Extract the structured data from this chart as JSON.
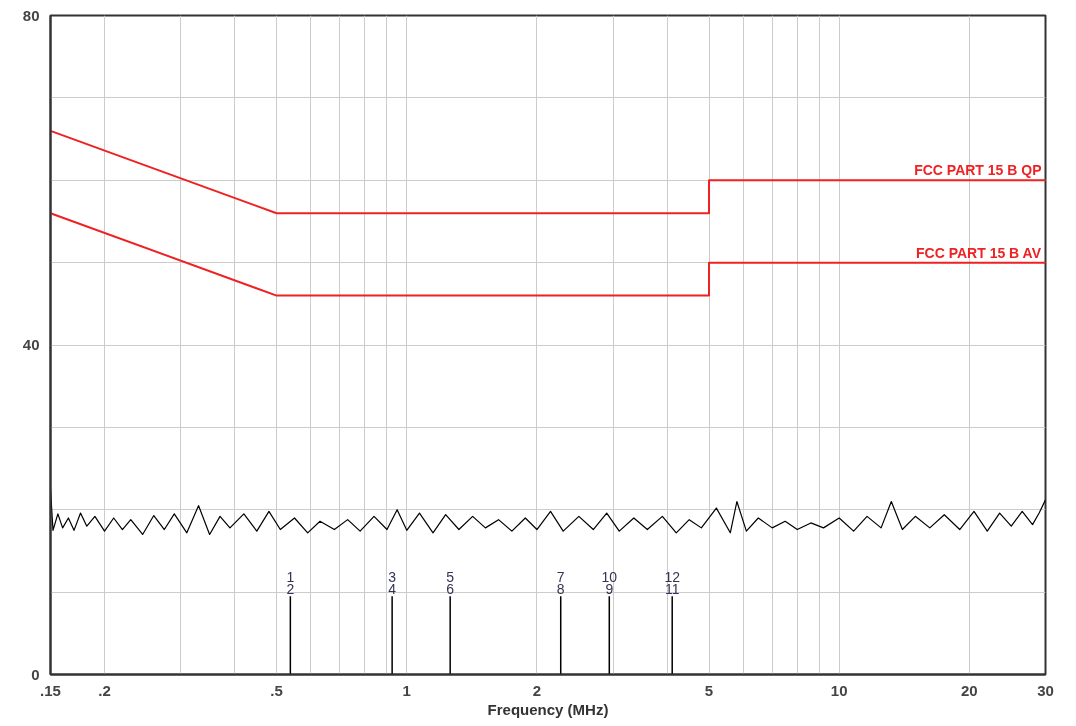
{
  "chart_data": {
    "type": "line",
    "xlabel": "Frequency (MHz)",
    "log": "x",
    "xlim": [
      0.15,
      30
    ],
    "ylim": [
      0,
      80
    ],
    "xticks": [
      {
        "value": 0.15,
        "label": ".15"
      },
      {
        "value": 0.2,
        "label": ".2"
      },
      {
        "value": 0.3,
        "label": null
      },
      {
        "value": 0.4,
        "label": null
      },
      {
        "value": 0.5,
        "label": ".5"
      },
      {
        "value": 0.6,
        "label": null
      },
      {
        "value": 0.7,
        "label": null
      },
      {
        "value": 0.8,
        "label": null
      },
      {
        "value": 0.9,
        "label": null
      },
      1,
      2,
      {
        "value": 3,
        "label": null
      },
      {
        "value": 4,
        "label": null
      },
      5,
      {
        "value": 6,
        "label": null
      },
      {
        "value": 7,
        "label": null
      },
      {
        "value": 8,
        "label": null
      },
      {
        "value": 9,
        "label": null
      },
      10,
      20,
      30
    ],
    "yticks": [
      0,
      {
        "value": 10,
        "label": null
      },
      {
        "value": 20,
        "label": null
      },
      {
        "value": 30,
        "label": null
      },
      40,
      {
        "value": 50,
        "label": null
      },
      {
        "value": 60,
        "label": null
      },
      {
        "value": 70,
        "label": null
      },
      80
    ],
    "grid": true,
    "marker": "none",
    "line_style": "solid",
    "series": [
      {
        "name": "FCC PART 15 B QP",
        "color": "#ee2222",
        "x": [
          0.15,
          0.5,
          5,
          5,
          30
        ],
        "values": [
          66,
          56,
          56,
          60,
          60
        ]
      },
      {
        "name": "FCC PART 15 B AV",
        "color": "#ee2222",
        "x": [
          0.15,
          0.5,
          5,
          5,
          30
        ],
        "values": [
          56,
          46,
          46,
          50,
          50
        ]
      },
      {
        "color": "#000000",
        "x": [
          0.15,
          0.152,
          0.156,
          0.16,
          0.165,
          0.17,
          0.176,
          0.182,
          0.19,
          0.2,
          0.21,
          0.22,
          0.23,
          0.245,
          0.26,
          0.275,
          0.29,
          0.31,
          0.33,
          0.35,
          0.37,
          0.39,
          0.42,
          0.45,
          0.48,
          0.51,
          0.55,
          0.59,
          0.63,
          0.68,
          0.73,
          0.78,
          0.84,
          0.9,
          0.95,
          1.0,
          1.07,
          1.15,
          1.23,
          1.32,
          1.42,
          1.52,
          1.63,
          1.75,
          1.88,
          2.0,
          2.15,
          2.3,
          2.5,
          2.7,
          2.9,
          3.1,
          3.35,
          3.6,
          3.9,
          4.2,
          4.5,
          4.8,
          5.2,
          5.6,
          5.8,
          6.1,
          6.5,
          7.0,
          7.5,
          8.0,
          8.6,
          9.2,
          10.0,
          10.8,
          11.6,
          12.5,
          13.2,
          14.0,
          15.0,
          16.2,
          17.5,
          19.0,
          20.5,
          22.0,
          23.5,
          25.0,
          26.5,
          28.0,
          29.0,
          30.0
        ],
        "values": [
          22.5,
          17.5,
          19.5,
          17.8,
          19.0,
          17.5,
          19.6,
          18.0,
          19.2,
          17.4,
          19.0,
          17.6,
          18.8,
          17.0,
          19.3,
          17.6,
          19.5,
          17.2,
          20.5,
          17.0,
          19.2,
          17.8,
          19.5,
          17.4,
          19.8,
          17.6,
          19.0,
          17.2,
          18.6,
          17.6,
          18.8,
          17.4,
          19.2,
          17.6,
          20.0,
          17.5,
          19.6,
          17.2,
          19.4,
          17.6,
          19.2,
          17.8,
          18.8,
          17.4,
          19.0,
          17.6,
          19.8,
          17.4,
          19.2,
          17.6,
          19.6,
          17.4,
          19.0,
          17.6,
          19.2,
          17.2,
          18.8,
          17.8,
          20.2,
          17.2,
          21.0,
          17.4,
          19.0,
          17.8,
          18.6,
          17.6,
          18.4,
          17.8,
          19.0,
          17.4,
          19.2,
          17.8,
          21.0,
          17.6,
          19.2,
          17.8,
          19.4,
          17.6,
          19.8,
          17.4,
          19.6,
          18.0,
          19.8,
          18.2,
          19.6,
          21.2
        ]
      },
      {
        "type": "bar",
        "color": "#000000",
        "x": [
          0.538,
          0.925,
          1.26,
          2.27,
          2.94,
          4.11
        ],
        "values": [
          9.5,
          9.5,
          9.5,
          9.5,
          9.5,
          9.5
        ]
      }
    ],
    "annotations": [
      {
        "text": "1",
        "x": 0.538,
        "y": 9.5
      },
      {
        "text": "2",
        "x": 0.538,
        "y": 9.5
      },
      {
        "text": "3",
        "x": 0.925,
        "y": 9.5
      },
      {
        "text": "4",
        "x": 0.925,
        "y": 9.5
      },
      {
        "text": "5",
        "x": 1.26,
        "y": 9.5
      },
      {
        "text": "6",
        "x": 1.26,
        "y": 9.5
      },
      {
        "text": "7",
        "x": 2.27,
        "y": 9.5
      },
      {
        "text": "8",
        "x": 2.27,
        "y": 9.5
      },
      {
        "text": "10",
        "x": 2.94,
        "y": 9.5
      },
      {
        "text": "9",
        "x": 2.94,
        "y": 9.5
      },
      {
        "text": "12",
        "x": 4.11,
        "y": 9.5
      },
      {
        "text": "11",
        "x": 4.11,
        "y": 9.5
      }
    ]
  }
}
